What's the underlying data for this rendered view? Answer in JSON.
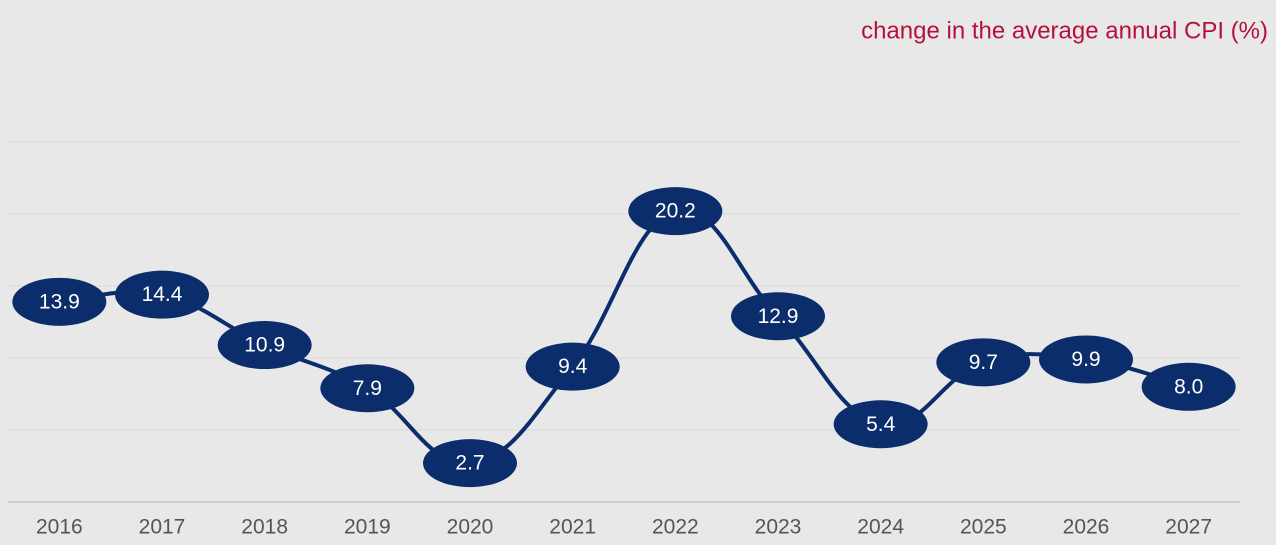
{
  "chart_data": {
    "type": "line",
    "title": "change in the average annual CPI (%)",
    "categories": [
      "2016",
      "2017",
      "2018",
      "2019",
      "2020",
      "2021",
      "2022",
      "2023",
      "2024",
      "2025",
      "2026",
      "2027"
    ],
    "series": [
      {
        "name": "CPI",
        "color": "#0c2d6b",
        "values": [
          13.9,
          14.4,
          10.9,
          7.9,
          2.7,
          9.4,
          20.2,
          12.9,
          5.4,
          9.7,
          9.9,
          8.0
        ],
        "value_labels": [
          "13.9",
          "14.4",
          "10.9",
          "7.9",
          "2.7",
          "9.4",
          "20.2",
          "12.9",
          "5.4",
          "9.7",
          "9.9",
          "8.0"
        ]
      }
    ],
    "ylim": [
      0,
      25
    ],
    "yticks": [
      0,
      5,
      10,
      15,
      20,
      25
    ],
    "grid": true
  }
}
